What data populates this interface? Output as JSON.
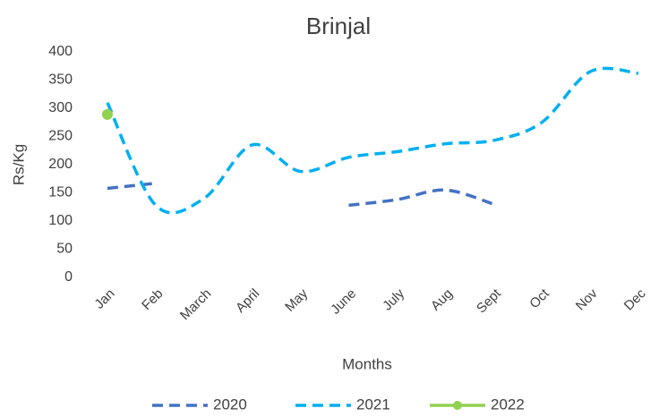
{
  "chart_data": {
    "type": "line",
    "title": "Brinjal",
    "x_label": "Months",
    "y_label": "Rs/Kg",
    "categories": [
      "Jan",
      "Feb",
      "March",
      "April",
      "May",
      "June",
      "July",
      "Aug",
      "Sept",
      "Oct",
      "Nov",
      "Dec"
    ],
    "series": [
      {
        "name": "2020",
        "color": "#4472c4",
        "dashed": true,
        "values": [
          158,
          167,
          null,
          null,
          null,
          128,
          138,
          155,
          130,
          null,
          null,
          null
        ]
      },
      {
        "name": "2021",
        "color": "#00b0f0",
        "dashed": true,
        "values": [
          310,
          128,
          140,
          235,
          188,
          213,
          223,
          237,
          243,
          275,
          365,
          362
        ]
      },
      {
        "name": "2022",
        "color": "#92d050",
        "dashed": false,
        "marker": true,
        "values": [
          289,
          null,
          null,
          null,
          null,
          null,
          null,
          null,
          null,
          null,
          null,
          null
        ]
      }
    ],
    "ylim": [
      0,
      400
    ],
    "yticks": [
      0,
      50,
      100,
      150,
      200,
      250,
      300,
      350,
      400
    ],
    "grid": false,
    "legend": "bottom"
  }
}
